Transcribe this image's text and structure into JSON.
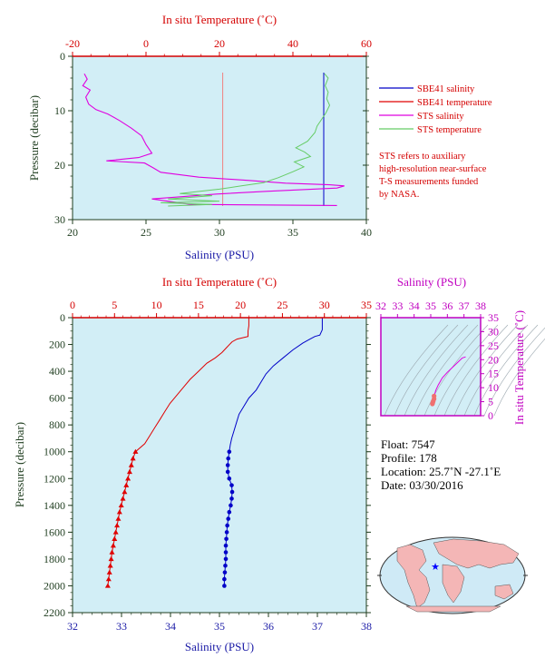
{
  "colors": {
    "plot_bg": "#d2eef6",
    "salinity": "#0000c8",
    "temperature": "#e00000",
    "sts_salinity": "#e000e0",
    "sts_temperature": "#66cc66",
    "axis_red": "#d40000",
    "axis_blue": "#1a1aa6",
    "axis_magenta": "#c000c0",
    "axis_dark": "#1f3d1f"
  },
  "top_panel": {
    "top_axis_title": "In situ Temperature (˚C)",
    "bottom_axis_title": "Salinity (PSU)",
    "left_axis_title": "Pressure (decibar)",
    "temp_ticks": [
      "-20",
      "0",
      "20",
      "40",
      "60"
    ],
    "sal_ticks": [
      "20",
      "25",
      "30",
      "35",
      "40"
    ],
    "pres_ticks": [
      "0",
      "10",
      "20",
      "30"
    ],
    "legend": [
      {
        "label": "SBE41 salinity",
        "color": "#0000c8"
      },
      {
        "label": "SBE41 temperature",
        "color": "#e00000"
      },
      {
        "label": "STS salinity",
        "color": "#e000e0"
      },
      {
        "label": "STS temperature",
        "color": "#66cc66"
      }
    ],
    "note": [
      "STS refers to auxiliary",
      "high-resolution near-surface",
      "T-S measurements funded",
      "by NASA."
    ]
  },
  "main_panel": {
    "top_axis_title": "In situ Temperature (˚C)",
    "bottom_axis_title": "Salinity (PSU)",
    "left_axis_title": "Pressure (decibar)",
    "temp_ticks": [
      "0",
      "5",
      "10",
      "15",
      "20",
      "25",
      "30",
      "35"
    ],
    "sal_ticks": [
      "32",
      "33",
      "34",
      "35",
      "36",
      "37",
      "38"
    ],
    "pres_ticks": [
      "0",
      "200",
      "400",
      "600",
      "800",
      "1000",
      "1200",
      "1400",
      "1600",
      "1800",
      "2000",
      "2200"
    ]
  },
  "ts_panel": {
    "top_axis_title": "Salinity (PSU)",
    "right_axis_title": "In situ Temperature (˚C)",
    "sal_ticks": [
      "32",
      "33",
      "34",
      "35",
      "36",
      "37",
      "38"
    ],
    "temp_ticks": [
      "35",
      "30",
      "25",
      "20",
      "15",
      "10",
      "5",
      "0"
    ]
  },
  "info": {
    "float": "Float:  7547",
    "profile": "Profile:  178",
    "location": "Location:  25.7˚N  -27.1˚E",
    "date": "Date:  03/30/2016"
  },
  "chart_data": [
    {
      "type": "line",
      "title": "",
      "xlabel": "Salinity (PSU)",
      "x2label": "In situ Temperature (˚C)",
      "ylabel": "Pressure (decibar)",
      "xlim": [
        20,
        40
      ],
      "x2lim": [
        -20,
        60
      ],
      "ylim": [
        30,
        0
      ],
      "series": [
        {
          "name": "SBE41 salinity",
          "axis": "salinity",
          "points": [
            [
              37.1,
              3
            ],
            [
              37.1,
              8
            ],
            [
              37.1,
              14
            ],
            [
              37.1,
              20
            ],
            [
              37.1,
              24
            ],
            [
              37.1,
              27.5
            ]
          ]
        },
        {
          "name": "SBE41 temperature",
          "axis": "temperature",
          "points": [
            [
              20.9,
              3
            ],
            [
              20.9,
              8
            ],
            [
              20.9,
              14
            ],
            [
              20.9,
              20
            ],
            [
              20.9,
              24
            ],
            [
              20.9,
              27.5
            ]
          ]
        },
        {
          "name": "STS salinity",
          "axis": "salinity",
          "points": [
            [
              20.8,
              3.2
            ],
            [
              21.0,
              4.2
            ],
            [
              20.7,
              5.4
            ],
            [
              21.2,
              6.2
            ],
            [
              20.9,
              7.5
            ],
            [
              21.1,
              8.8
            ],
            [
              21.6,
              9.8
            ],
            [
              22.4,
              10.6
            ],
            [
              23.2,
              11.8
            ],
            [
              24.0,
              13.2
            ],
            [
              24.7,
              14.6
            ],
            [
              25.0,
              16.2
            ],
            [
              25.4,
              17.8
            ],
            [
              24.5,
              18.6
            ],
            [
              22.3,
              19.2
            ],
            [
              24.9,
              19.6
            ],
            [
              25.5,
              20.5
            ],
            [
              26.0,
              21.3
            ],
            [
              28.6,
              22.2
            ],
            [
              32.0,
              22.8
            ],
            [
              34.5,
              23.3
            ],
            [
              37.5,
              23.6
            ],
            [
              38.5,
              23.8
            ],
            [
              38.0,
              24.2
            ],
            [
              33.2,
              24.8
            ],
            [
              29.8,
              25.3
            ],
            [
              25.4,
              26.2
            ],
            [
              27.0,
              26.8
            ],
            [
              28.0,
              27.2
            ],
            [
              38.0,
              27.4
            ]
          ]
        },
        {
          "name": "STS temperature",
          "axis": "temperature",
          "points": [
            [
              48.6,
              3.2
            ],
            [
              49.6,
              4.0
            ],
            [
              48.8,
              5.4
            ],
            [
              49.6,
              6.6
            ],
            [
              49.2,
              7.8
            ],
            [
              50.0,
              9.0
            ],
            [
              49.0,
              10.4
            ],
            [
              47.8,
              11.6
            ],
            [
              46.6,
              12.8
            ],
            [
              46.0,
              14.0
            ],
            [
              44.0,
              15.6
            ],
            [
              40.8,
              16.8
            ],
            [
              43.2,
              17.6
            ],
            [
              44.8,
              18.4
            ],
            [
              40.4,
              19.4
            ],
            [
              43.0,
              20.3
            ],
            [
              40.0,
              21.2
            ],
            [
              36.0,
              22.3
            ],
            [
              32.0,
              23.2
            ],
            [
              26.0,
              23.8
            ],
            [
              20.0,
              24.4
            ],
            [
              9.2,
              25.2
            ],
            [
              18.0,
              25.6
            ],
            [
              6.0,
              26.2
            ],
            [
              20.0,
              26.6
            ],
            [
              4.0,
              26.9
            ],
            [
              18.0,
              27.2
            ],
            [
              6.0,
              27.5
            ]
          ]
        }
      ]
    },
    {
      "type": "line",
      "title": "",
      "xlabel": "Salinity (PSU)",
      "x2label": "In situ Temperature (˚C)",
      "ylabel": "Pressure (decibar)",
      "xlim": [
        32,
        38
      ],
      "x2lim": [
        0,
        35
      ],
      "ylim": [
        2200,
        0
      ],
      "series": [
        {
          "name": "Salinity (PSU)",
          "axis": "salinity",
          "points": [
            [
              37.1,
              0
            ],
            [
              37.1,
              40
            ],
            [
              37.1,
              90
            ],
            [
              37.05,
              130
            ],
            [
              36.95,
              140
            ],
            [
              36.85,
              160
            ],
            [
              36.7,
              190
            ],
            [
              36.5,
              240
            ],
            [
              36.3,
              300
            ],
            [
              36.1,
              360
            ],
            [
              35.95,
              420
            ],
            [
              35.85,
              480
            ],
            [
              35.75,
              540
            ],
            [
              35.6,
              600
            ],
            [
              35.5,
              660
            ],
            [
              35.4,
              720
            ],
            [
              35.35,
              780
            ],
            [
              35.3,
              840
            ],
            [
              35.25,
              900
            ],
            [
              35.22,
              950
            ],
            [
              35.2,
              1000
            ],
            [
              35.18,
              1050
            ],
            [
              35.17,
              1100
            ],
            [
              35.17,
              1150
            ],
            [
              35.2,
              1200
            ],
            [
              35.25,
              1250
            ],
            [
              35.26,
              1300
            ],
            [
              35.25,
              1350
            ],
            [
              35.23,
              1400
            ],
            [
              35.2,
              1450
            ],
            [
              35.18,
              1500
            ],
            [
              35.16,
              1550
            ],
            [
              35.15,
              1600
            ],
            [
              35.14,
              1650
            ],
            [
              35.13,
              1700
            ],
            [
              35.13,
              1750
            ],
            [
              35.13,
              1800
            ],
            [
              35.12,
              1850
            ],
            [
              35.11,
              1900
            ],
            [
              35.1,
              1950
            ],
            [
              35.1,
              2000
            ]
          ]
        },
        {
          "name": "In situ Temperature (˚C)",
          "axis": "temperature",
          "points": [
            [
              21.0,
              0
            ],
            [
              21.0,
              60
            ],
            [
              20.9,
              100
            ],
            [
              20.9,
              140
            ],
            [
              19.6,
              160
            ],
            [
              19.0,
              180
            ],
            [
              18.4,
              220
            ],
            [
              17.8,
              260
            ],
            [
              17.0,
              300
            ],
            [
              16.0,
              340
            ],
            [
              15.0,
              400
            ],
            [
              14.0,
              460
            ],
            [
              13.2,
              520
            ],
            [
              12.4,
              580
            ],
            [
              11.6,
              640
            ],
            [
              11.0,
              700
            ],
            [
              10.4,
              760
            ],
            [
              9.8,
              820
            ],
            [
              9.2,
              880
            ],
            [
              8.6,
              940
            ],
            [
              7.5,
              1000
            ],
            [
              7.2,
              1050
            ],
            [
              7.0,
              1100
            ],
            [
              6.8,
              1150
            ],
            [
              6.6,
              1200
            ],
            [
              6.4,
              1250
            ],
            [
              6.2,
              1300
            ],
            [
              6.0,
              1350
            ],
            [
              5.8,
              1400
            ],
            [
              5.6,
              1450
            ],
            [
              5.45,
              1500
            ],
            [
              5.3,
              1550
            ],
            [
              5.15,
              1600
            ],
            [
              5.0,
              1650
            ],
            [
              4.85,
              1700
            ],
            [
              4.7,
              1750
            ],
            [
              4.6,
              1800
            ],
            [
              4.5,
              1850
            ],
            [
              4.4,
              1900
            ],
            [
              4.3,
              1950
            ],
            [
              4.2,
              2000
            ]
          ]
        }
      ]
    },
    {
      "type": "scatter",
      "title": "",
      "xlabel": "Salinity (PSU)",
      "ylabel": "In situ Temperature (˚C)",
      "xlim": [
        32,
        38
      ],
      "ylim": [
        0,
        35
      ],
      "series": [
        {
          "name": "T-S profile",
          "points": [
            [
              35.1,
              4.2
            ],
            [
              35.12,
              4.6
            ],
            [
              35.15,
              5.2
            ],
            [
              35.2,
              6.0
            ],
            [
              35.2,
              7.0
            ],
            [
              35.3,
              9.0
            ],
            [
              35.45,
              11.0
            ],
            [
              35.7,
              13.5
            ],
            [
              36.0,
              15.5
            ],
            [
              36.4,
              17.8
            ],
            [
              36.9,
              20.6
            ],
            [
              37.1,
              21.0
            ]
          ]
        }
      ]
    }
  ]
}
